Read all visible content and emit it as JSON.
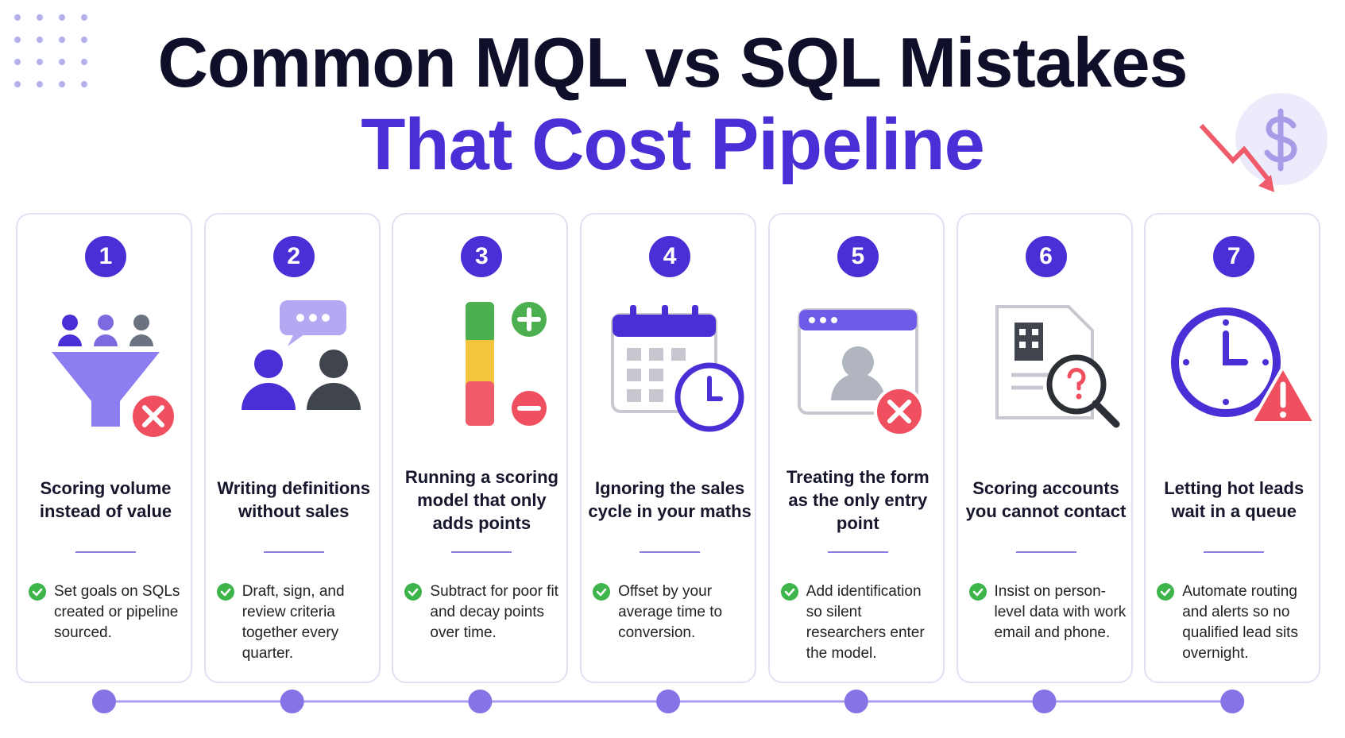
{
  "header": {
    "title_line1": "Common MQL vs SQL Mistakes",
    "title_line2": "That Cost Pipeline"
  },
  "cards": [
    {
      "number": "1",
      "title": "Scoring volume instead of value",
      "tip": "Set goals on SQLs created or pipeline sourced."
    },
    {
      "number": "2",
      "title": "Writing definitions without sales",
      "tip": "Draft, sign, and review criteria together every quarter."
    },
    {
      "number": "3",
      "title": "Running a scoring model that only adds points",
      "tip": "Subtract for poor fit and decay points over time."
    },
    {
      "number": "4",
      "title": "Ignoring the sales cycle in your maths",
      "tip": "Offset by your average time to conversion."
    },
    {
      "number": "5",
      "title": "Treating the form as the only entry point",
      "tip": "Add identification so silent researchers enter the model."
    },
    {
      "number": "6",
      "title": "Scoring accounts you cannot contact",
      "tip": "Insist on person-level data with work email and phone."
    },
    {
      "number": "7",
      "title": "Letting hot leads wait in a queue",
      "tip": "Automate routing and alerts so no qualified lead sits overnight."
    }
  ]
}
